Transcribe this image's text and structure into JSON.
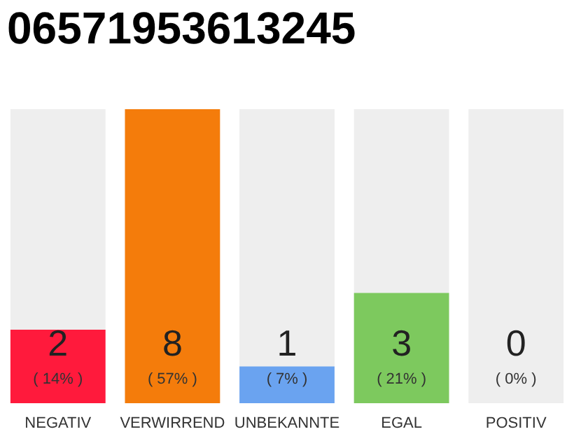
{
  "chart_data": {
    "type": "bar",
    "title": "06571953613245",
    "categories": [
      "NEGATIV",
      "VERWIRREND",
      "UNBEKANNTE",
      "EGAL",
      "POSITIV"
    ],
    "values": [
      2,
      8,
      1,
      3,
      0
    ],
    "colors": [
      "#ff1a3c",
      "#f47c0b",
      "#6aa3f0",
      "#7dc95e",
      "#9e9e9e"
    ],
    "data_labels": true,
    "bands": [
      {
        "axis": "y",
        "from": 0,
        "to": 8,
        "color": "#eeeeee"
      }
    ],
    "annotations": [
      "( 14% )",
      "( 57% )",
      "( 7% )",
      "( 21% )",
      "( 0% )"
    ]
  }
}
